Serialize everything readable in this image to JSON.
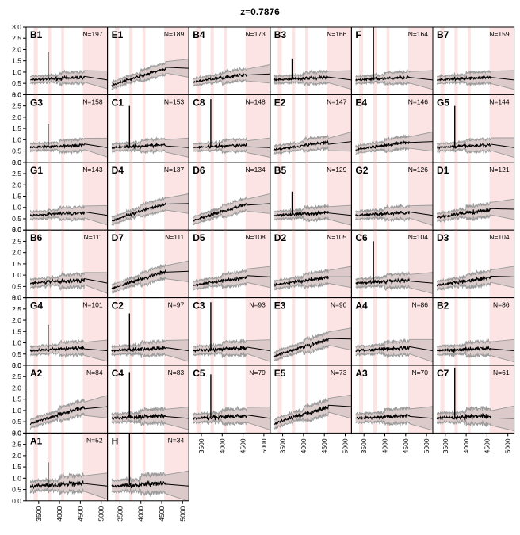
{
  "title": "z=0.7876",
  "chart_data": {
    "type": "line",
    "title": "z=0.7876",
    "x_ticks": [
      3500,
      4000,
      4500,
      5000
    ],
    "y_ticks": [
      0.0,
      0.5,
      1.0,
      1.5,
      2.0,
      2.5,
      3.0
    ],
    "y_tick_labels": [
      "0.0",
      "0.5",
      "1.0",
      "1.5",
      "2.0",
      "2.5",
      "3.0"
    ],
    "xlim": [
      3200,
      5150
    ],
    "ylim": [
      0,
      3.0
    ],
    "shaded_bands": [
      [
        3380,
        3480
      ],
      [
        3720,
        3800
      ],
      [
        4040,
        4110
      ],
      [
        4560,
        5150
      ]
    ],
    "colors": {
      "band": "#fde4e4",
      "envelope": "#d6c4c4",
      "envelope_edge": "#9a9a9a",
      "line": "#000000"
    },
    "panels": [
      {
        "label": "B1",
        "n": 197,
        "trend": "flat",
        "spike": 1.9
      },
      {
        "label": "E1",
        "n": 189,
        "trend": "rising",
        "spike": null
      },
      {
        "label": "B4",
        "n": 173,
        "trend": "mild",
        "spike": null
      },
      {
        "label": "B3",
        "n": 166,
        "trend": "flat",
        "spike": 1.6
      },
      {
        "label": "F",
        "n": 164,
        "trend": "flat",
        "spike": 3.0
      },
      {
        "label": "B7",
        "n": 159,
        "trend": "flat",
        "spike": null
      },
      {
        "label": "G3",
        "n": 158,
        "trend": "flat",
        "spike": 1.7
      },
      {
        "label": "C1",
        "n": 153,
        "trend": "flat",
        "spike": 2.5
      },
      {
        "label": "C8",
        "n": 148,
        "trend": "flat",
        "spike": 2.8
      },
      {
        "label": "E2",
        "n": 147,
        "trend": "mild",
        "spike": null
      },
      {
        "label": "E4",
        "n": 146,
        "trend": "mild",
        "spike": null
      },
      {
        "label": "G5",
        "n": 144,
        "trend": "flat",
        "spike": 2.5
      },
      {
        "label": "G1",
        "n": 143,
        "trend": "flat",
        "spike": null
      },
      {
        "label": "D4",
        "n": 137,
        "trend": "rising",
        "spike": null
      },
      {
        "label": "D6",
        "n": 134,
        "trend": "rising",
        "spike": null
      },
      {
        "label": "B5",
        "n": 129,
        "trend": "flat",
        "spike": 1.7
      },
      {
        "label": "G2",
        "n": 126,
        "trend": "flat",
        "spike": null
      },
      {
        "label": "D1",
        "n": 121,
        "trend": "mild",
        "spike": null
      },
      {
        "label": "B6",
        "n": 111,
        "trend": "flat",
        "spike": null
      },
      {
        "label": "D7",
        "n": 111,
        "trend": "rising",
        "spike": null
      },
      {
        "label": "D5",
        "n": 108,
        "trend": "mild",
        "spike": null
      },
      {
        "label": "D2",
        "n": 105,
        "trend": "mild",
        "spike": null
      },
      {
        "label": "C6",
        "n": 104,
        "trend": "flat",
        "spike": 2.5
      },
      {
        "label": "D3",
        "n": 104,
        "trend": "mild",
        "spike": null
      },
      {
        "label": "G4",
        "n": 101,
        "trend": "flat",
        "spike": 1.8
      },
      {
        "label": "C2",
        "n": 97,
        "trend": "flat",
        "spike": 2.3
      },
      {
        "label": "C3",
        "n": 93,
        "trend": "flat",
        "spike": 2.8
      },
      {
        "label": "E3",
        "n": 90,
        "trend": "rising",
        "spike": null
      },
      {
        "label": "A4",
        "n": 86,
        "trend": "flat",
        "spike": null
      },
      {
        "label": "B2",
        "n": 86,
        "trend": "flat",
        "spike": null
      },
      {
        "label": "A2",
        "n": 84,
        "trend": "rising",
        "spike": null
      },
      {
        "label": "C4",
        "n": 83,
        "trend": "flat",
        "spike": 2.7
      },
      {
        "label": "C5",
        "n": 79,
        "trend": "flat",
        "spike": 2.6
      },
      {
        "label": "E5",
        "n": 73,
        "trend": "rising",
        "spike": null
      },
      {
        "label": "A3",
        "n": 70,
        "trend": "flat",
        "spike": null
      },
      {
        "label": "C7",
        "n": 61,
        "trend": "flat",
        "spike": 2.9
      },
      {
        "label": "A1",
        "n": 52,
        "trend": "flat",
        "spike": 1.7
      },
      {
        "label": "H",
        "n": 34,
        "trend": "flat",
        "spike": 3.0
      }
    ]
  }
}
